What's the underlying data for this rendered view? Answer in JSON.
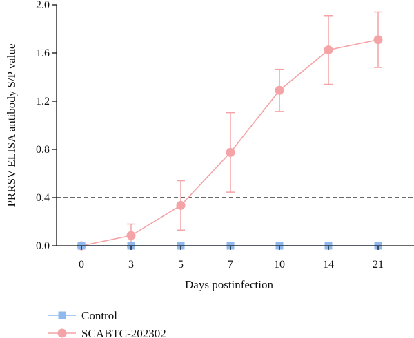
{
  "chart_data": {
    "type": "line",
    "xlabel": "Days postinfection",
    "ylabel": "PRRSV ELISA antibody S/P value",
    "categories": [
      "0",
      "3",
      "5",
      "7",
      "10",
      "14",
      "21"
    ],
    "ylim": [
      0,
      2.0
    ],
    "yticks": [
      "0.0",
      "0.4",
      "0.8",
      "1.2",
      "1.6",
      "2.0"
    ],
    "threshold": 0.4,
    "grid": false,
    "legend_position": "bottom-left",
    "series": [
      {
        "name": "Control",
        "color": "#8fb8ef",
        "marker": "square",
        "values": [
          0,
          0,
          0,
          0,
          0,
          0,
          0
        ],
        "errors": [
          0,
          0,
          0,
          0,
          0,
          0,
          0
        ]
      },
      {
        "name": "SCABTC-202302",
        "color": "#f4a3a6",
        "marker": "circle",
        "values": [
          0,
          0.085,
          0.335,
          0.775,
          1.29,
          1.625,
          1.71
        ],
        "errors": [
          0,
          0.095,
          0.205,
          0.33,
          0.175,
          0.285,
          0.23
        ]
      }
    ]
  }
}
